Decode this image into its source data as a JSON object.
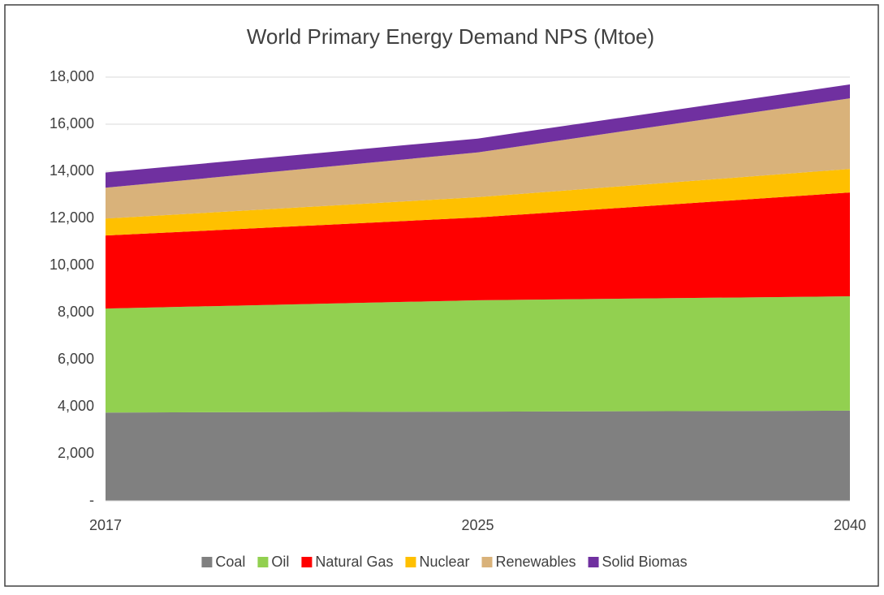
{
  "chart_data": {
    "type": "stacked_area",
    "title": "World Primary Energy Demand NPS (Mtoe)",
    "categories": [
      "2017",
      "2025",
      "2040"
    ],
    "series": [
      {
        "name": "Coal",
        "color": "#808080",
        "values": [
          3750,
          3790,
          3830
        ]
      },
      {
        "name": "Oil",
        "color": "#92d050",
        "values": [
          4420,
          4730,
          4860
        ]
      },
      {
        "name": "Natural Gas",
        "color": "#ff0000",
        "values": [
          3100,
          3520,
          4410
        ]
      },
      {
        "name": "Nuclear",
        "color": "#ffc000",
        "values": [
          720,
          860,
          1000
        ]
      },
      {
        "name": "Renewables",
        "color": "#d9b27a",
        "values": [
          1310,
          1900,
          3000
        ]
      },
      {
        "name": "Solid Biomas",
        "color": "#7030a0",
        "values": [
          650,
          590,
          590
        ]
      }
    ],
    "ylim": [
      0,
      18000
    ],
    "yticks": [
      {
        "value": 0,
        "label": "-"
      },
      {
        "value": 2000,
        "label": "2,000"
      },
      {
        "value": 4000,
        "label": "4,000"
      },
      {
        "value": 6000,
        "label": "6,000"
      },
      {
        "value": 8000,
        "label": "8,000"
      },
      {
        "value": 10000,
        "label": "10,000"
      },
      {
        "value": 12000,
        "label": "12,000"
      },
      {
        "value": 14000,
        "label": "14,000"
      },
      {
        "value": 16000,
        "label": "16,000"
      },
      {
        "value": 18000,
        "label": "18,000"
      }
    ],
    "grid": true,
    "legend": "bottom"
  }
}
